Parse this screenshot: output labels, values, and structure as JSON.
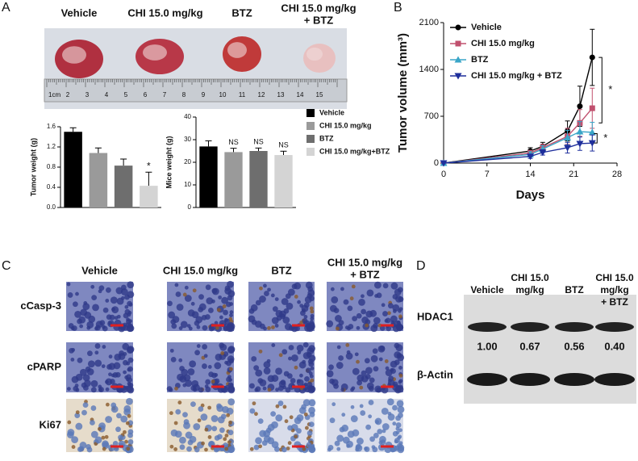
{
  "panel_labels": [
    "A",
    "B",
    "C",
    "D"
  ],
  "photo": {
    "labels": [
      [
        "Vehicle"
      ],
      [
        "CHI 15.0 mg/kg"
      ],
      [
        "BTZ"
      ],
      [
        "CHI 15.0 mg/kg",
        "+ BTZ"
      ]
    ],
    "ruler_labels": [
      "1cm",
      "2",
      "3",
      "4",
      "5",
      "6",
      "7",
      "8",
      "9",
      "10",
      "11",
      "12",
      "13",
      "14",
      "15"
    ]
  },
  "chart_data": [
    {
      "type": "bar",
      "y_label": "Tumor weight (g)",
      "categories": [
        "Vehicle",
        "CHI 15.0 mg/kg",
        "BTZ",
        "CHI 15.0 mg/kg+BTZ"
      ],
      "values": [
        1.5,
        1.08,
        0.83,
        0.43
      ],
      "errors": [
        0.08,
        0.1,
        0.13,
        0.27
      ],
      "colors": [
        "#000000",
        "#9a9a9a",
        "#6e6e6e",
        "#d4d4d4"
      ],
      "annotations": [
        null,
        null,
        null,
        "*"
      ],
      "ylim": [
        0,
        1.6
      ],
      "yticks": [
        {
          "value": 0,
          "label": "0.0"
        },
        0.4,
        0.8,
        1.2,
        1.6
      ]
    },
    {
      "type": "bar",
      "y_label": "Mice weight (g)",
      "values": [
        27,
        24.5,
        25,
        23.2
      ],
      "errors": [
        2.5,
        1.7,
        1.3,
        1.7
      ],
      "colors": [
        "#000000",
        "#9a9a9a",
        "#6e6e6e",
        "#d4d4d4"
      ],
      "annotations": [
        null,
        "NS",
        "NS",
        "NS"
      ],
      "ylim": [
        0,
        40
      ],
      "yticks": [
        0,
        10,
        20,
        30,
        40
      ]
    },
    {
      "type": "line",
      "x_label": "Days",
      "y_label": "Tumor volume (mm³)",
      "x": [
        0,
        14,
        16,
        20,
        22,
        24
      ],
      "series": [
        {
          "name": "Vehicle",
          "color": "#000000",
          "marker": "circle",
          "values": [
            0,
            180,
            250,
            480,
            850,
            1580
          ],
          "errors": [
            0,
            50,
            60,
            150,
            300,
            420
          ]
        },
        {
          "name": "CHI 15.0 mg/kg",
          "color": "#c0506e",
          "marker": "square",
          "values": [
            0,
            150,
            230,
            400,
            600,
            820
          ],
          "errors": [
            0,
            40,
            50,
            120,
            200,
            300
          ]
        },
        {
          "name": "BTZ",
          "color": "#3aa6c8",
          "marker": "triangle",
          "values": [
            0,
            130,
            210,
            380,
            470,
            460
          ],
          "errors": [
            0,
            40,
            50,
            110,
            150,
            150
          ]
        },
        {
          "name": "CHI 15.0 mg/kg + BTZ",
          "color": "#1f2f9c",
          "marker": "down",
          "values": [
            0,
            100,
            160,
            230,
            290,
            300
          ],
          "errors": [
            0,
            30,
            40,
            80,
            100,
            120
          ]
        }
      ],
      "annotations": [
        "*",
        "*"
      ],
      "xlim": [
        0,
        28
      ],
      "xticks": [
        0,
        7,
        14,
        21,
        28
      ],
      "ylim": [
        0,
        2100
      ],
      "yticks": [
        0,
        700,
        1400,
        2100
      ]
    }
  ],
  "ihc": {
    "columns": [
      [
        "Vehicle"
      ],
      [
        "CHI 15.0 mg/kg"
      ],
      [
        "BTZ"
      ],
      [
        "CHI 15.0 mg/kg",
        "+ BTZ"
      ]
    ],
    "rows": [
      "cCasp-3",
      "cPARP",
      "Ki67"
    ]
  },
  "blot": {
    "columns": [
      [
        "Vehicle"
      ],
      [
        "CHI 15.0",
        "mg/kg"
      ],
      [
        "BTZ"
      ],
      [
        "CHI 15.0",
        "mg/kg",
        "+ BTZ"
      ]
    ],
    "rows": [
      "HDAC1",
      "β-Actin"
    ],
    "ratios": [
      "1.00",
      "0.67",
      "0.56",
      "0.40"
    ]
  }
}
